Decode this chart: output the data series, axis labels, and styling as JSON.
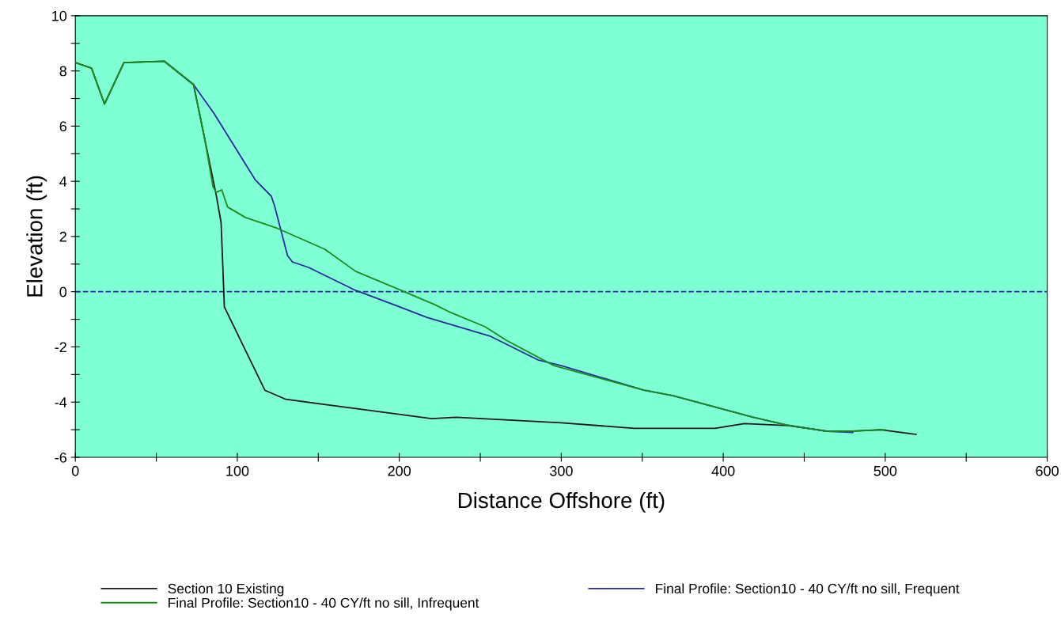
{
  "chart_data": {
    "type": "line",
    "xlabel": "Distance Offshore (ft)",
    "ylabel": "Elevation (ft)",
    "xlim": [
      0,
      600
    ],
    "ylim": [
      -6,
      10
    ],
    "xticks": [
      0,
      {
        "value": 50,
        "label": null
      },
      100,
      {
        "value": 150,
        "label": null
      },
      200,
      {
        "value": 250,
        "label": null
      },
      300,
      {
        "value": 350,
        "label": null
      },
      400,
      {
        "value": 450,
        "label": null
      },
      500,
      {
        "value": 550,
        "label": null
      },
      600
    ],
    "yticks": [
      -6,
      {
        "value": -5,
        "label": null
      },
      -4,
      {
        "value": -3,
        "label": null
      },
      -2,
      {
        "value": -1,
        "label": null
      },
      0,
      {
        "value": 1,
        "label": null
      },
      2,
      {
        "value": 3,
        "label": null
      },
      4,
      {
        "value": 5,
        "label": null
      },
      6,
      {
        "value": 7,
        "label": null
      },
      8,
      {
        "value": 9,
        "label": null
      },
      10
    ],
    "grid": false,
    "legend": "bottom",
    "marker": "none",
    "line_style": "solid",
    "ref_lines": [
      {
        "axis": "y",
        "value": 0,
        "label": null,
        "color": "#2a2a9a",
        "line_style": "dashed"
      }
    ],
    "series": [
      {
        "name": "Section 10 Existing",
        "color": "#1a1a1a",
        "x": [
          0,
          10,
          18,
          30,
          55,
          73,
          80,
          87,
          90,
          91,
          92,
          117,
          130,
          220,
          235,
          300,
          345,
          395,
          413,
          440,
          464,
          480,
          497,
          519
        ],
        "values": [
          8.3,
          8.1,
          6.8,
          8.3,
          8.35,
          7.5,
          5.5,
          3.5,
          2.5,
          1.0,
          -0.55,
          -3.57,
          -3.9,
          -4.6,
          -4.55,
          -4.75,
          -4.95,
          -4.95,
          -4.78,
          -4.85,
          -5.05,
          -5.05,
          -5.0,
          -5.17
        ]
      },
      {
        "name": "Final Profile: Section10 - 40 CY/ft no sill, Infrequent",
        "color": "#1c8c1c",
        "x": [
          0,
          10,
          18,
          30,
          55,
          73,
          80,
          85,
          87,
          90.4,
          94,
          105,
          124.6,
          154,
          173,
          203,
          222,
          230.5,
          253,
          266,
          295.5,
          351,
          369,
          418,
          439,
          464,
          480,
          500
        ],
        "values": [
          8.3,
          8.1,
          6.8,
          8.3,
          8.35,
          7.5,
          5.5,
          3.8,
          3.6,
          3.69,
          3.07,
          2.69,
          2.3,
          1.54,
          0.74,
          0.0,
          -0.47,
          -0.72,
          -1.27,
          -1.76,
          -2.68,
          -3.57,
          -3.77,
          -4.54,
          -4.83,
          -5.06,
          -5.05,
          -5.0
        ]
      },
      {
        "name": "Final Profile: Section10 - 40 CY/ft no sill, Frequent",
        "color": "#2a2a9a",
        "x": [
          55,
          73,
          85.5,
          111,
          121,
          123,
          131,
          134,
          144,
          173,
          198,
          217,
          256.5,
          286,
          300,
          351,
          369,
          418,
          439,
          464,
          480
        ],
        "values": [
          8.35,
          7.5,
          6.47,
          4.06,
          3.46,
          3.11,
          1.31,
          1.08,
          0.88,
          0.05,
          -0.5,
          -0.93,
          -1.62,
          -2.48,
          -2.68,
          -3.57,
          -3.77,
          -4.54,
          -4.83,
          -5.06,
          -5.1
        ]
      }
    ]
  }
}
